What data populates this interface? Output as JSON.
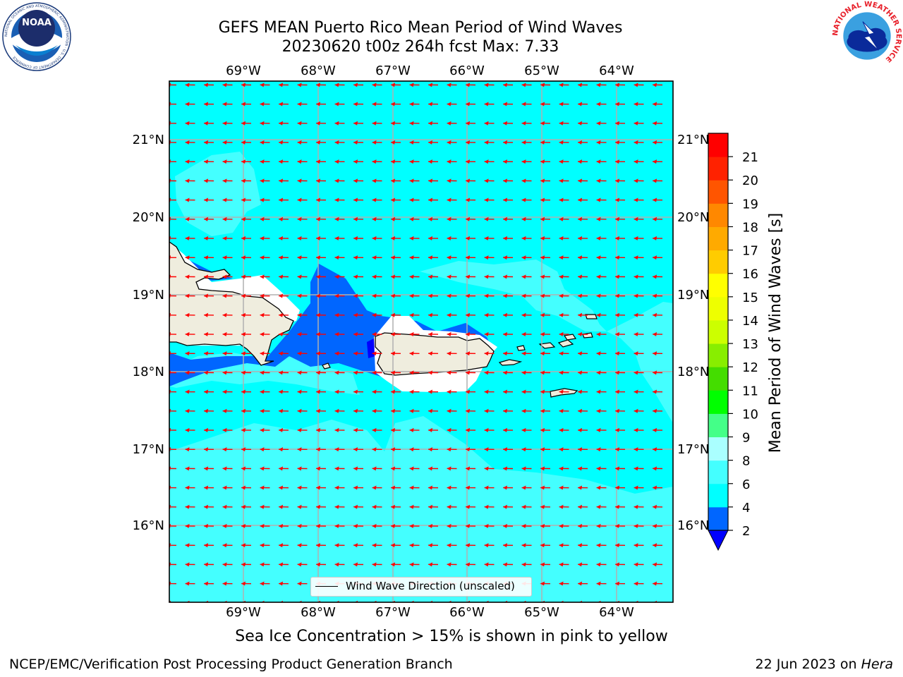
{
  "header": {
    "title_line1": "GEFS MEAN Puerto Rico Mean Period of Wind Waves",
    "title_line2": "20230620 t00z 264h fcst   Max: 7.33"
  },
  "logos": {
    "noaa_text": "NOAA",
    "noaa_ring": "NATIONAL OCEANIC AND ATMOSPHERIC ADMINISTRATION · U.S. DEPARTMENT OF COMMERCE",
    "nws_ring": "NATIONAL WEATHER SERVICE"
  },
  "map": {
    "lon_labels": [
      "69°W",
      "68°W",
      "67°W",
      "66°W",
      "65°W",
      "64°W"
    ],
    "lat_labels": [
      "21°N",
      "20°N",
      "19°N",
      "18°N",
      "17°N",
      "16°N"
    ],
    "legend_label": "Wind Wave Direction (unscaled)",
    "arrow_color": "#ff0000",
    "land_color": "#efedde"
  },
  "colorbar": {
    "title": "Mean Period of Wind Waves [s]",
    "tick_labels": [
      "2",
      "4",
      "6",
      "8",
      "9",
      "10",
      "11",
      "12",
      "13",
      "14",
      "15",
      "16",
      "17",
      "18",
      "19",
      "20",
      "21"
    ],
    "colors": [
      "#0066ff",
      "#00ffff",
      "#44ffff",
      "#aaffff",
      "#44ff88",
      "#00ff00",
      "#44dd00",
      "#88ee00",
      "#ccff00",
      "#eeff00",
      "#ffff00",
      "#ffcc00",
      "#ffaa00",
      "#ff8800",
      "#ff5500",
      "#ff2200",
      "#ff0000"
    ],
    "under_color": "#0000ff"
  },
  "note": "Sea Ice Concentration > 15% is shown in pink to yellow",
  "footer": {
    "left": "NCEP/EMC/Verification Post Processing Product Generation Branch",
    "date": "22 Jun 2023 on ",
    "machine": "Hera"
  }
}
